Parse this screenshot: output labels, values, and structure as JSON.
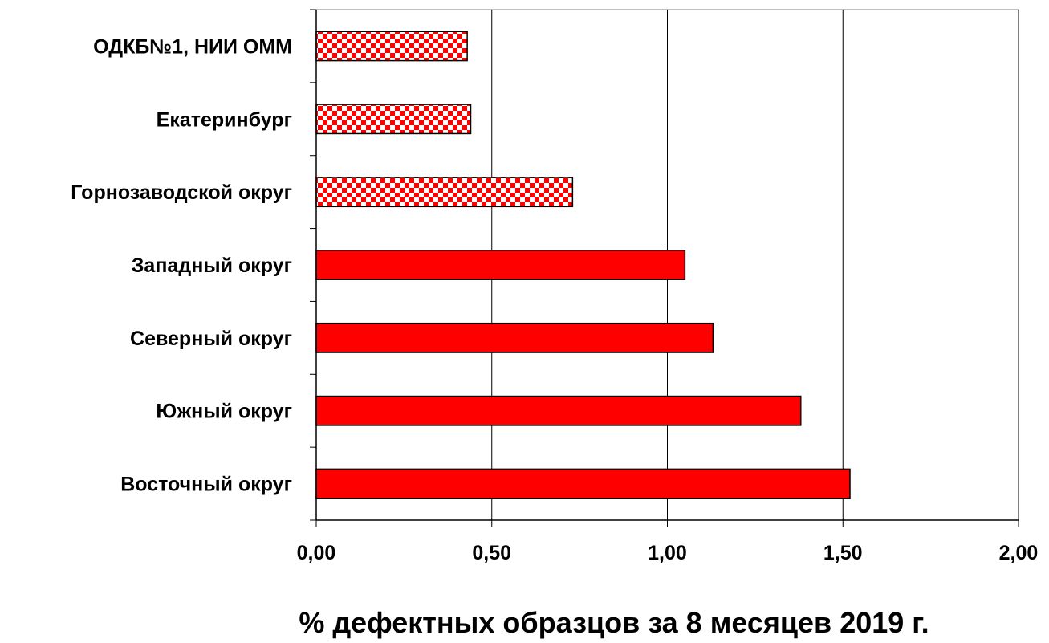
{
  "chart_data": {
    "type": "bar",
    "orientation": "horizontal",
    "categories": [
      "ОДКБ№1, НИИ ОММ",
      "Екатеринбург",
      "Горнозаводской округ",
      "Западный округ",
      "Северный округ",
      "Южный округ",
      "Восточный округ"
    ],
    "values": [
      0.43,
      0.44,
      0.73,
      1.05,
      1.13,
      1.38,
      1.52
    ],
    "fill_styles": [
      "checkered",
      "checkered",
      "checkered",
      "solid",
      "solid",
      "solid",
      "solid"
    ],
    "bar_color": "#ff0000",
    "pattern_color": "#ff0000",
    "xlabel": "% дефектных образцов за 8 месяцев 2019 г.",
    "xlim": [
      0,
      2
    ],
    "xticks": [
      "0,00",
      "0,50",
      "1,00",
      "1,50",
      "2,00"
    ],
    "xtick_values": [
      0,
      0.5,
      1,
      1.5,
      2
    ],
    "grid": "vertical"
  }
}
